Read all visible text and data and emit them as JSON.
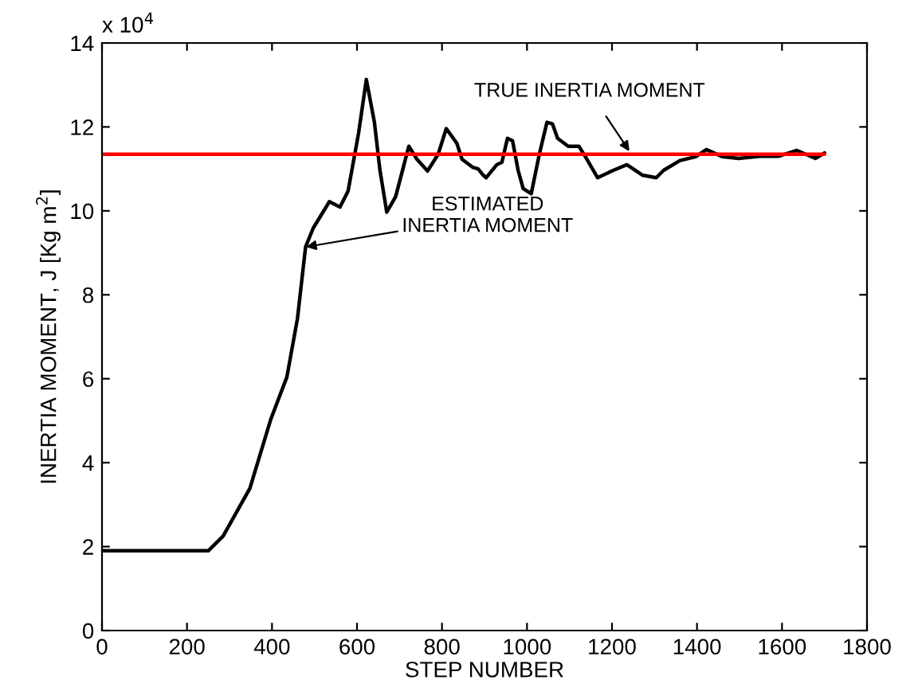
{
  "chart_data": {
    "type": "line",
    "xlabel": "STEP NUMBER",
    "ylabel": "INERTIA MOMENT, J [Kg m$^{2}$]",
    "xlim": [
      0,
      1800
    ],
    "xticks": [
      0,
      200,
      400,
      600,
      800,
      1000,
      1200,
      1400,
      1600,
      1800
    ],
    "ylim": [
      0,
      14
    ],
    "yticks": [
      0,
      2,
      4,
      6,
      8,
      10,
      12,
      14
    ],
    "grid": false,
    "legend": false,
    "line_style": "solid",
    "marker": "none",
    "series": [
      {
        "color": "#000000",
        "x": [
          0,
          250,
          285,
          348,
          397,
          435,
          460,
          479,
          497,
          535,
          560,
          579,
          604,
          622,
          641,
          654,
          670,
          691,
          722,
          741,
          766,
          791,
          810,
          835,
          847,
          872,
          885,
          897,
          904,
          929,
          941,
          954,
          966,
          979,
          991,
          1010,
          1029,
          1047,
          1060,
          1072,
          1097,
          1122,
          1141,
          1166,
          1204,
          1235,
          1272,
          1304,
          1322,
          1360,
          1397,
          1422,
          1460,
          1498,
          1548,
          1591,
          1635,
          1679,
          1700
        ],
        "values": [
          1.9,
          1.9,
          2.25,
          3.39,
          5.03,
          6.04,
          7.44,
          9.14,
          9.59,
          10.22,
          10.09,
          10.47,
          11.87,
          13.13,
          12.11,
          10.97,
          9.97,
          10.34,
          11.54,
          11.23,
          10.95,
          11.35,
          11.96,
          11.61,
          11.23,
          11.04,
          11.0,
          10.85,
          10.79,
          11.1,
          11.16,
          11.73,
          11.67,
          10.97,
          10.53,
          10.41,
          11.35,
          12.11,
          12.07,
          11.73,
          11.54,
          11.54,
          11.23,
          10.79,
          10.97,
          11.1,
          10.85,
          10.79,
          10.97,
          11.2,
          11.29,
          11.46,
          11.29,
          11.25,
          11.3,
          11.3,
          11.44,
          11.25,
          11.38
        ]
      },
      {
        "color": "#ff0000",
        "x": [
          0,
          1700
        ],
        "values": [
          11.35,
          11.35
        ]
      }
    ],
    "annotations": [
      "x 10$^{4}$",
      {
        "text": "TRUE INERTIA MOMENT",
        "x": 1241,
        "y": 11.42
      },
      {
        "text": "ESTIMATED\nINERTIA MOMENT",
        "x": 480,
        "y": 9.14
      }
    ]
  }
}
